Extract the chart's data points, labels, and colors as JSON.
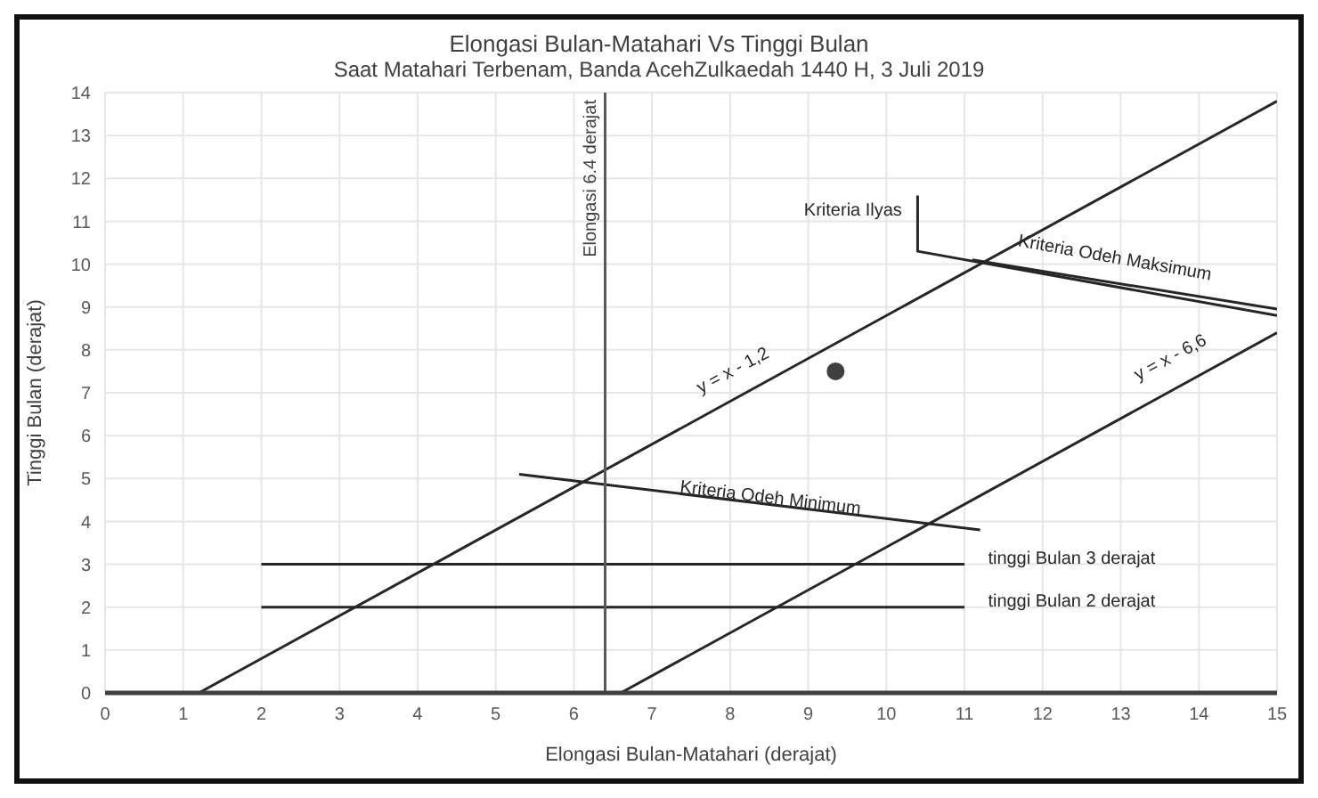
{
  "chart_data": {
    "type": "line",
    "title": "Elongasi Bulan-Matahari Vs Tinggi Bulan",
    "subtitle": "Saat Matahari Terbenam, Banda AcehZulkaedah 1440 H, 3 Juli 2019",
    "xlabel": "Elongasi Bulan-Matahari (derajat)",
    "ylabel": "Tinggi Bulan (derajat)",
    "xlim": [
      0,
      15
    ],
    "xticks": [
      0,
      1,
      2,
      3,
      4,
      5,
      6,
      7,
      8,
      9,
      10,
      11,
      12,
      13,
      14,
      15
    ],
    "ylim": [
      0,
      14
    ],
    "yticks": [
      0,
      1,
      2,
      3,
      4,
      5,
      6,
      7,
      8,
      9,
      10,
      11,
      12,
      13,
      14
    ],
    "grid": true,
    "marker": "none",
    "line_style": "solid",
    "series": [
      {
        "color": "#262626",
        "x": [
          1.2,
          15
        ],
        "values": [
          0,
          13.8
        ]
      },
      {
        "color": "#262626",
        "x": [
          6.6,
          15
        ],
        "values": [
          0,
          8.4
        ]
      },
      {
        "color": "#262626",
        "x": [
          2,
          11
        ],
        "values": [
          3,
          3
        ]
      },
      {
        "color": "#262626",
        "x": [
          2,
          11
        ],
        "values": [
          2,
          2
        ]
      },
      {
        "color": "#262626",
        "x": [
          5.3,
          11.2
        ],
        "values": [
          5.1,
          3.8
        ]
      },
      {
        "color": "#262626",
        "x": [
          10.4,
          10.4,
          15
        ],
        "values": [
          11.6,
          10.3,
          8.8
        ]
      },
      {
        "color": "#262626",
        "x": [
          11.1,
          15
        ],
        "values": [
          10.1,
          8.95
        ]
      },
      {
        "type": "scatter",
        "marker": "circle",
        "color": "#404040",
        "x": [
          9.35
        ],
        "values": [
          7.5
        ]
      }
    ],
    "ref_lines": [
      {
        "axis": "x",
        "value": 6.4,
        "label": "Elongasi 6.4 derajat",
        "color": "#595959"
      }
    ],
    "annotations": [
      "Kriteria Ilyas",
      "Kriteria Odeh Maksimum",
      "y = x - 1,2",
      "Kriteria Odeh Minimum",
      "y = x - 6,6",
      "tinggi Bulan 3 derajat",
      "tinggi Bulan 2 derajat"
    ]
  }
}
